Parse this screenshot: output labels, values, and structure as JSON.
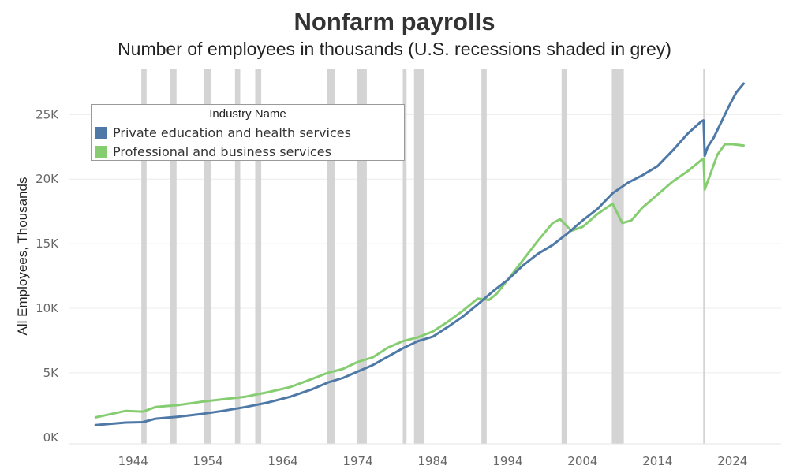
{
  "title": "Nonfarm payrolls",
  "subtitle": "Number of employees in thousands (U.S. recessions shaded in grey)",
  "chart_data": {
    "type": "line",
    "ylabel": "All Employees, Thousands",
    "xlabel": "",
    "xlim": [
      1935.5,
      2030.5
    ],
    "ylim": [
      -500,
      28500
    ],
    "x_ticks": [
      1944,
      1954,
      1964,
      1974,
      1984,
      1994,
      2004,
      2014,
      2024
    ],
    "x_tick_labels": [
      "1944",
      "1954",
      "1964",
      "1974",
      "1984",
      "1994",
      "2004",
      "2014",
      "2024"
    ],
    "y_ticks": [
      0,
      5000,
      10000,
      15000,
      20000,
      25000
    ],
    "y_tick_labels": [
      "0K",
      "5K",
      "10K",
      "15K",
      "20K",
      "25K"
    ],
    "grid": "horizontal",
    "legend": {
      "title": "Industry Name",
      "placement": "top-left"
    },
    "recessions": [
      [
        1945.1,
        1945.8
      ],
      [
        1948.9,
        1949.8
      ],
      [
        1953.5,
        1954.4
      ],
      [
        1957.6,
        1958.3
      ],
      [
        1960.3,
        1961.1
      ],
      [
        1969.9,
        1970.9
      ],
      [
        1973.9,
        1975.2
      ],
      [
        1980.0,
        1980.5
      ],
      [
        1981.5,
        1982.9
      ],
      [
        1990.5,
        1991.2
      ],
      [
        2001.2,
        2001.9
      ],
      [
        2007.9,
        2009.5
      ],
      [
        2020.1,
        2020.35
      ]
    ],
    "series": [
      {
        "name": "Private education and health services",
        "color": "#4e79a7",
        "points": [
          [
            1939,
            950
          ],
          [
            1941,
            1050
          ],
          [
            1943,
            1150
          ],
          [
            1945.3,
            1180
          ],
          [
            1947,
            1450
          ],
          [
            1950,
            1600
          ],
          [
            1953,
            1800
          ],
          [
            1956,
            2050
          ],
          [
            1959,
            2350
          ],
          [
            1962,
            2700
          ],
          [
            1965,
            3150
          ],
          [
            1968,
            3750
          ],
          [
            1970,
            4250
          ],
          [
            1972,
            4600
          ],
          [
            1974,
            5100
          ],
          [
            1976,
            5600
          ],
          [
            1978,
            6250
          ],
          [
            1980,
            6900
          ],
          [
            1982,
            7450
          ],
          [
            1984,
            7800
          ],
          [
            1986,
            8550
          ],
          [
            1988,
            9350
          ],
          [
            1990,
            10300
          ],
          [
            1992,
            11300
          ],
          [
            1994,
            12200
          ],
          [
            1996,
            13300
          ],
          [
            1998,
            14200
          ],
          [
            2000,
            14900
          ],
          [
            2002,
            15800
          ],
          [
            2004,
            16800
          ],
          [
            2006,
            17700
          ],
          [
            2008,
            18900
          ],
          [
            2010,
            19700
          ],
          [
            2012,
            20300
          ],
          [
            2014,
            21000
          ],
          [
            2016,
            22200
          ],
          [
            2018,
            23500
          ],
          [
            2019.9,
            24500
          ],
          [
            2020.15,
            24550
          ],
          [
            2020.3,
            21800
          ],
          [
            2020.7,
            22500
          ],
          [
            2021.5,
            23200
          ],
          [
            2022.5,
            24400
          ],
          [
            2023.5,
            25600
          ],
          [
            2024.5,
            26700
          ],
          [
            2025.5,
            27400
          ]
        ]
      },
      {
        "name": "Professional and business services",
        "color": "#86cd72",
        "points": [
          [
            1939,
            1550
          ],
          [
            1941,
            1800
          ],
          [
            1943,
            2050
          ],
          [
            1945.3,
            2000
          ],
          [
            1947,
            2350
          ],
          [
            1950,
            2500
          ],
          [
            1953,
            2750
          ],
          [
            1956,
            2950
          ],
          [
            1959,
            3150
          ],
          [
            1962,
            3500
          ],
          [
            1965,
            3900
          ],
          [
            1968,
            4550
          ],
          [
            1970,
            5000
          ],
          [
            1972,
            5300
          ],
          [
            1974,
            5850
          ],
          [
            1976,
            6200
          ],
          [
            1978,
            6950
          ],
          [
            1980,
            7450
          ],
          [
            1982,
            7750
          ],
          [
            1984,
            8200
          ],
          [
            1986,
            8950
          ],
          [
            1988,
            9800
          ],
          [
            1990,
            10750
          ],
          [
            1991.5,
            10650
          ],
          [
            1992.5,
            11100
          ],
          [
            1994,
            12200
          ],
          [
            1996,
            13700
          ],
          [
            1998,
            15200
          ],
          [
            2000,
            16600
          ],
          [
            2001,
            16900
          ],
          [
            2002.5,
            16000
          ],
          [
            2004,
            16300
          ],
          [
            2006,
            17300
          ],
          [
            2008,
            18100
          ],
          [
            2009.3,
            16600
          ],
          [
            2010.5,
            16800
          ],
          [
            2012,
            17800
          ],
          [
            2014,
            18800
          ],
          [
            2016,
            19800
          ],
          [
            2018,
            20600
          ],
          [
            2019.9,
            21500
          ],
          [
            2020.15,
            21550
          ],
          [
            2020.3,
            19200
          ],
          [
            2021,
            20300
          ],
          [
            2022,
            21900
          ],
          [
            2023,
            22700
          ],
          [
            2024,
            22700
          ],
          [
            2025.5,
            22600
          ]
        ]
      }
    ]
  }
}
